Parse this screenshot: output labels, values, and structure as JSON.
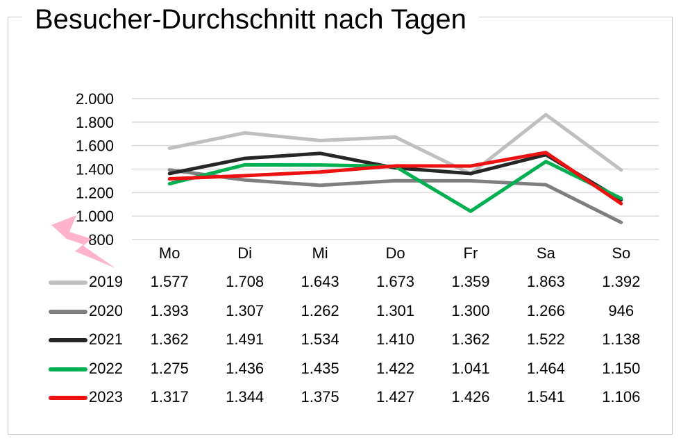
{
  "chart_data": {
    "type": "line",
    "title": "Besucher-Durchschnitt nach Tagen",
    "categories": [
      "Mo",
      "Di",
      "Mi",
      "Do",
      "Fr",
      "Sa",
      "So"
    ],
    "ylim": [
      800,
      2000
    ],
    "yticks": [
      "2.000",
      "1.800",
      "1.600",
      "1.400",
      "1.200",
      "1.000",
      "800"
    ],
    "ytick_values": [
      2000,
      1800,
      1600,
      1400,
      1200,
      1000,
      800
    ],
    "grid": true,
    "data_table": true,
    "series": [
      {
        "name": "2019",
        "color": "#bfbfbf",
        "values": [
          1577,
          1708,
          1643,
          1673,
          1359,
          1863,
          1392
        ],
        "labels": [
          "1.577",
          "1.708",
          "1.643",
          "1.673",
          "1.359",
          "1.863",
          "1.392"
        ]
      },
      {
        "name": "2020",
        "color": "#7f7f7f",
        "values": [
          1393,
          1307,
          1262,
          1301,
          1300,
          1266,
          946
        ],
        "labels": [
          "1.393",
          "1.307",
          "1.262",
          "1.301",
          "1.300",
          "1.266",
          "946"
        ]
      },
      {
        "name": "2021",
        "color": "#262626",
        "values": [
          1362,
          1491,
          1534,
          1410,
          1362,
          1522,
          1138
        ],
        "labels": [
          "1.362",
          "1.491",
          "1.534",
          "1.410",
          "1.362",
          "1.522",
          "1.138"
        ]
      },
      {
        "name": "2022",
        "color": "#00b050",
        "values": [
          1275,
          1436,
          1435,
          1422,
          1041,
          1464,
          1150
        ],
        "labels": [
          "1.275",
          "1.436",
          "1.435",
          "1.422",
          "1.041",
          "1.464",
          "1.150"
        ]
      },
      {
        "name": "2023",
        "color": "#ee1111",
        "values": [
          1317,
          1344,
          1375,
          1427,
          1426,
          1541,
          1106
        ],
        "labels": [
          "1.317",
          "1.344",
          "1.375",
          "1.427",
          "1.426",
          "1.541",
          "1.106"
        ]
      }
    ],
    "decoration": {
      "icon": "lightning-bolt-icon",
      "color": "#ffb3cc"
    }
  }
}
